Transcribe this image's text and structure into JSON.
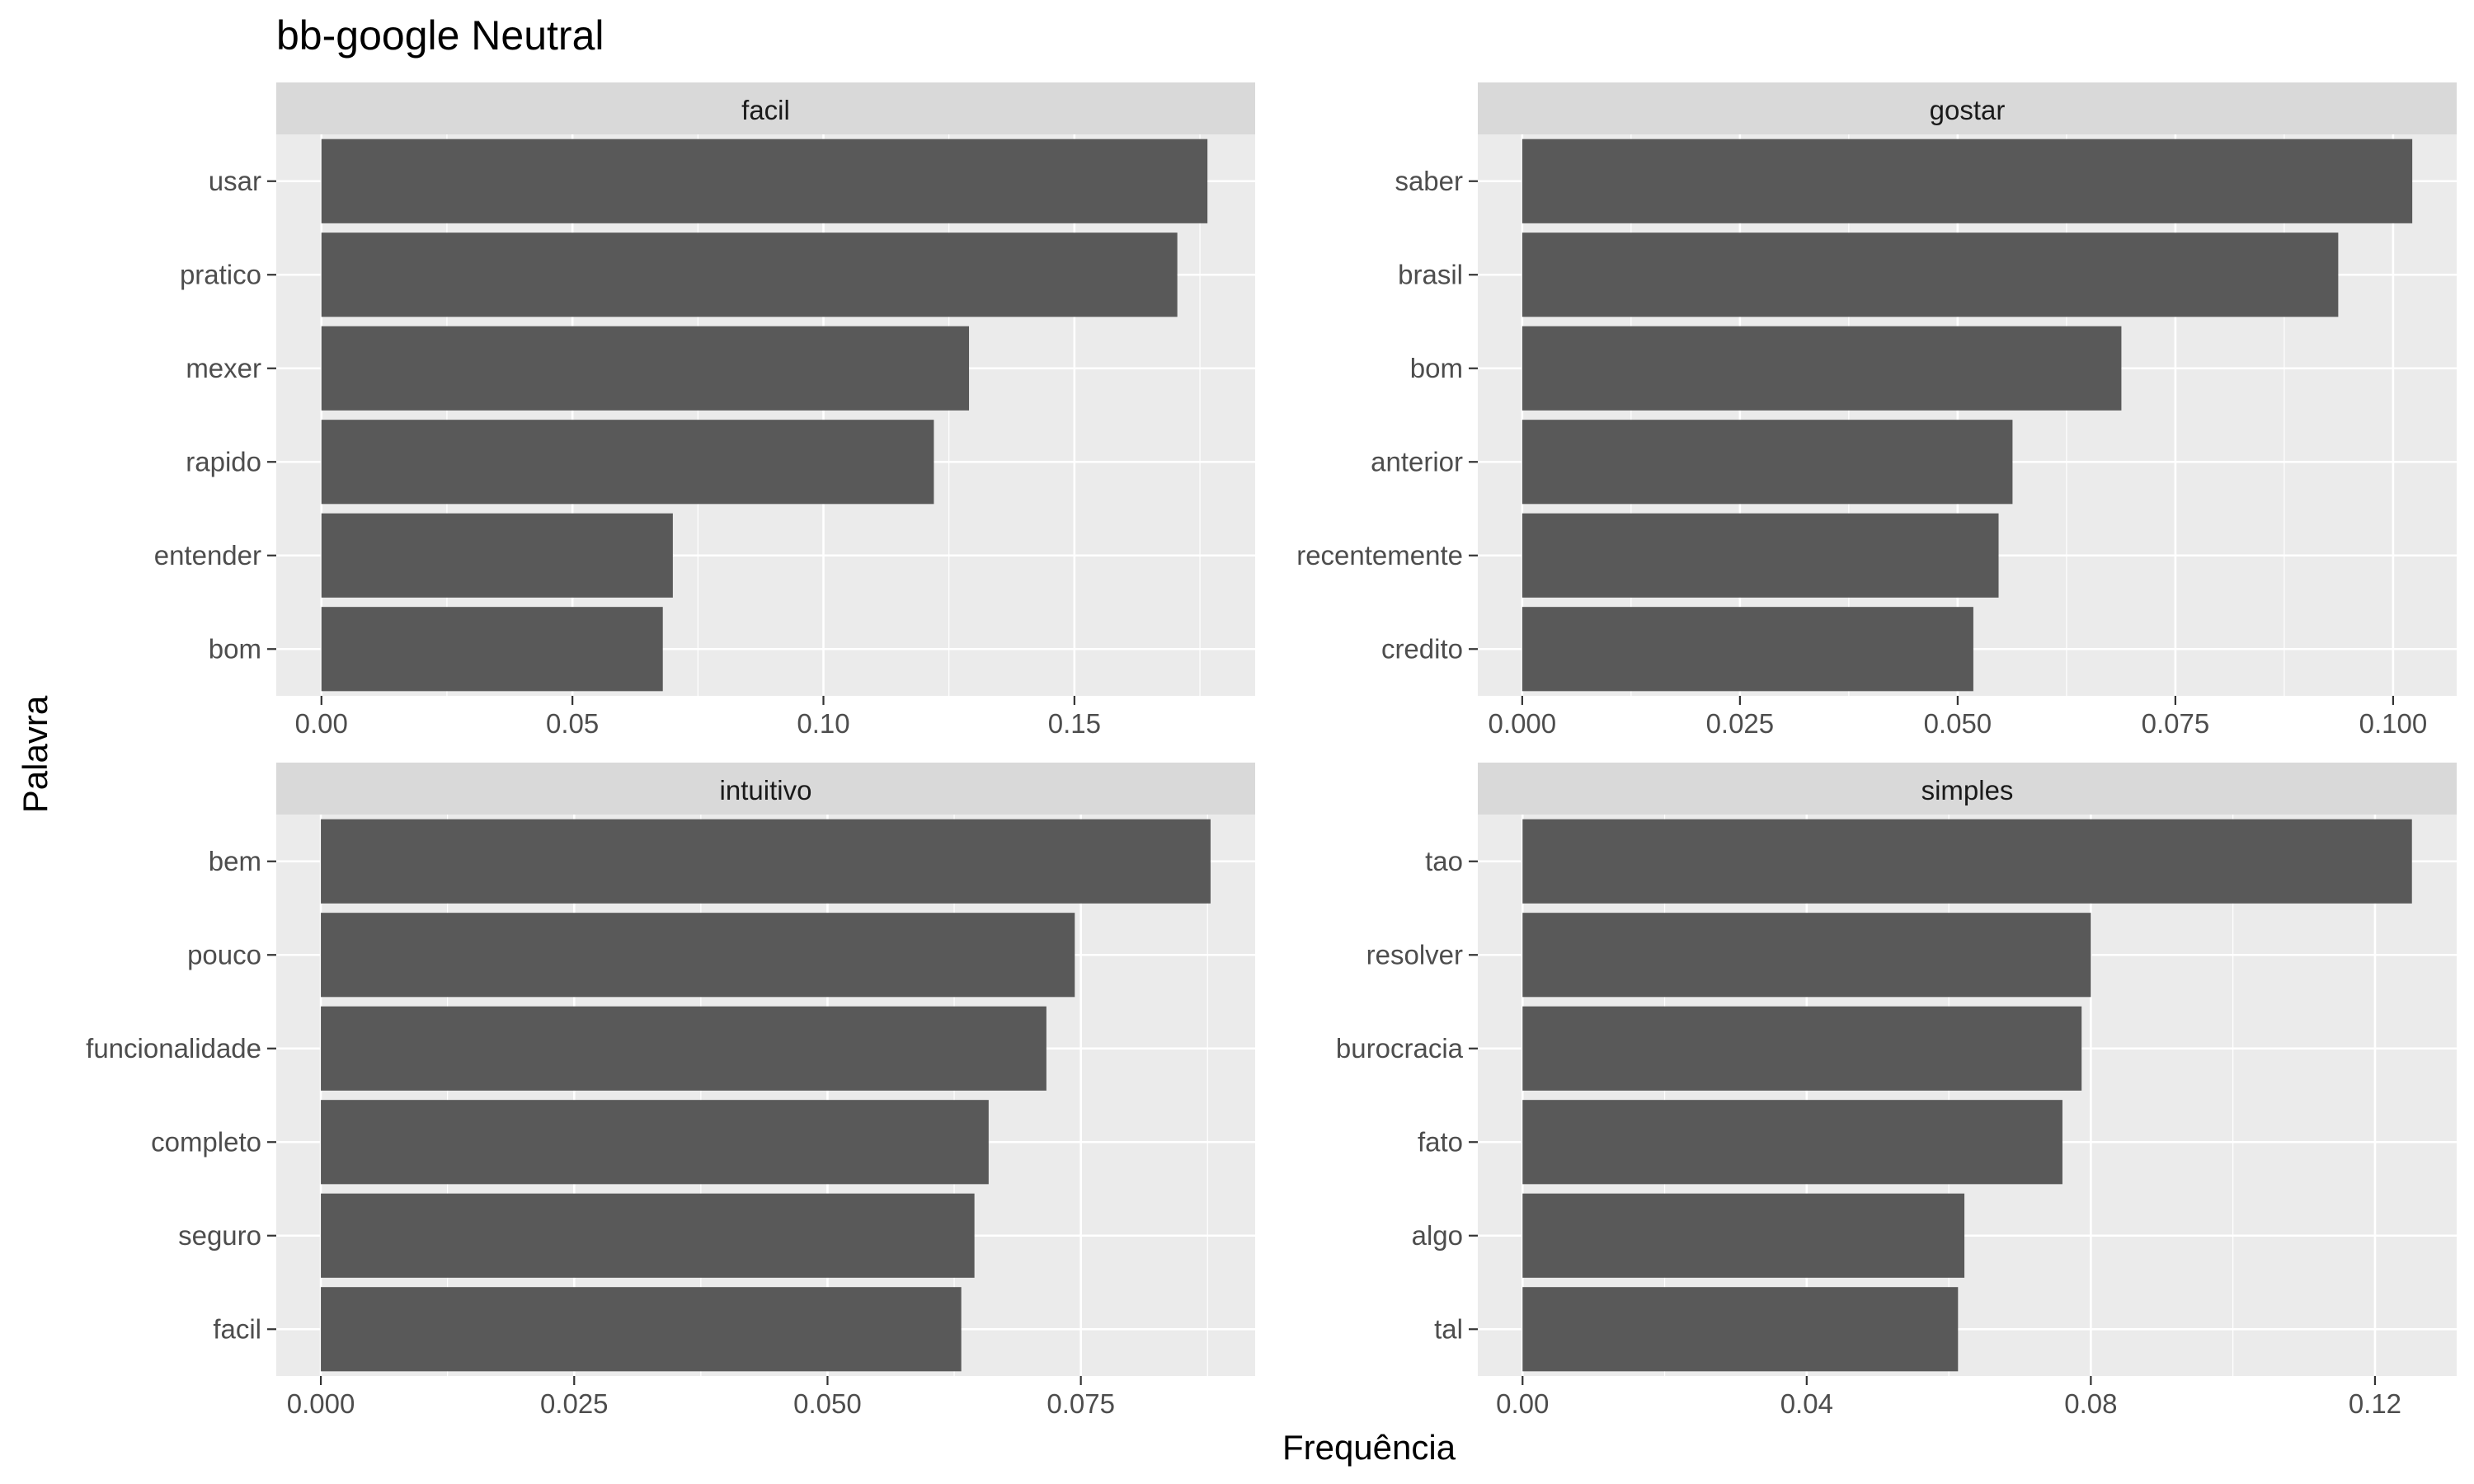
{
  "chart_data": {
    "type": "bar",
    "orientation": "horizontal",
    "title": "bb-google Neutral",
    "xlabel": "Frequência",
    "ylabel": "Palavra",
    "grid": true,
    "legend": "none",
    "colors": {
      "bar": "#595959",
      "panel_background": "#ebebeb",
      "strip_background": "#d9d9d9",
      "grid": "#ffffff"
    },
    "panels": [
      {
        "facet": "facil",
        "categories": [
          "usar",
          "pratico",
          "mexer",
          "rapido",
          "entender",
          "bom"
        ],
        "values": [
          0.1765,
          0.1705,
          0.129,
          0.122,
          0.07,
          0.068
        ],
        "xlim": [
          -0.009,
          0.186
        ],
        "xticks": [
          0,
          0.05,
          0.1,
          0.15
        ],
        "xtick_labels": [
          "0.00",
          "0.05",
          "0.10",
          "0.15"
        ]
      },
      {
        "facet": "gostar",
        "categories": [
          "saber",
          "brasil",
          "bom",
          "anterior",
          "recentemente",
          "credito"
        ],
        "values": [
          0.1022,
          0.0937,
          0.0688,
          0.0563,
          0.0547,
          0.0518
        ],
        "xlim": [
          -0.0051,
          0.1073
        ],
        "xticks": [
          0,
          0.025,
          0.05,
          0.075,
          0.1
        ],
        "xtick_labels": [
          "0.000",
          "0.025",
          "0.050",
          "0.075",
          "0.100"
        ]
      },
      {
        "facet": "intuitivo",
        "categories": [
          "bem",
          "pouco",
          "funcionalidade",
          "completo",
          "seguro",
          "facil"
        ],
        "values": [
          0.0878,
          0.0744,
          0.0716,
          0.0659,
          0.0645,
          0.0632
        ],
        "xlim": [
          -0.0044,
          0.0922
        ],
        "xticks": [
          0,
          0.025,
          0.05,
          0.075
        ],
        "xtick_labels": [
          "0.000",
          "0.025",
          "0.050",
          "0.075"
        ]
      },
      {
        "facet": "simples",
        "categories": [
          "tao",
          "resolver",
          "burocracia",
          "fato",
          "algo",
          "tal"
        ],
        "values": [
          0.1252,
          0.08,
          0.0787,
          0.076,
          0.0622,
          0.0613
        ],
        "xlim": [
          -0.0063,
          0.1315
        ],
        "xticks": [
          0,
          0.04,
          0.08,
          0.12
        ],
        "xtick_labels": [
          "0.00",
          "0.04",
          "0.08",
          "0.12"
        ]
      }
    ]
  }
}
